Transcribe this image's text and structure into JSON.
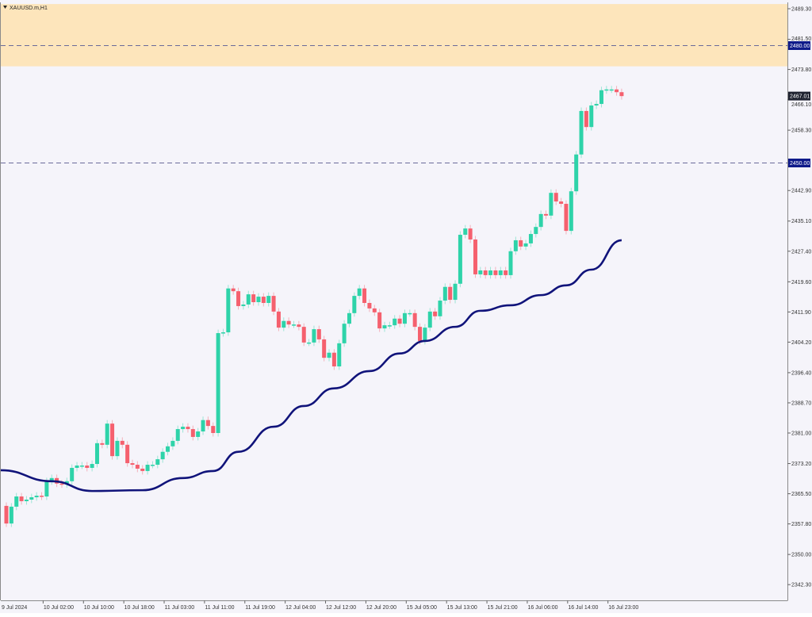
{
  "symbol_label": "XAUUSD.m,H1",
  "colors": {
    "background": "#f5f4fa",
    "zone": "#fde5bb",
    "bull": "#2ed3a9",
    "bear": "#f5606e",
    "ma": "#10137a",
    "level_line": "#6a6a9a",
    "level_tag": "#0f1a8a",
    "price_tag": "#1f2230"
  },
  "chart_data": {
    "type": "candlestick",
    "title": "XAUUSD.m,H1",
    "ylim": [
      2338.5,
      2491.0
    ],
    "y_ticks": [
      "2489.30",
      "2481.50",
      "2473.80",
      "2466.10",
      "2458.30",
      "2442.90",
      "2435.10",
      "2427.40",
      "2419.60",
      "2411.90",
      "2404.20",
      "2396.40",
      "2388.70",
      "2381.00",
      "2373.20",
      "2365.50",
      "2357.80",
      "2350.00",
      "2342.30"
    ],
    "x_ticks": [
      {
        "bar": 0,
        "label": "9 Jul 2024"
      },
      {
        "bar": 8,
        "label": "10 Jul 02:00"
      },
      {
        "bar": 16,
        "label": "10 Jul 10:00"
      },
      {
        "bar": 24,
        "label": "10 Jul 18:00"
      },
      {
        "bar": 32,
        "label": "11 Jul 03:00"
      },
      {
        "bar": 40,
        "label": "11 Jul 11:00"
      },
      {
        "bar": 48,
        "label": "11 Jul 19:00"
      },
      {
        "bar": 56,
        "label": "12 Jul 04:00"
      },
      {
        "bar": 64,
        "label": "12 Jul 12:00"
      },
      {
        "bar": 72,
        "label": "12 Jul 20:00"
      },
      {
        "bar": 80,
        "label": "15 Jul 05:00"
      },
      {
        "bar": 88,
        "label": "15 Jul 13:00"
      },
      {
        "bar": 96,
        "label": "15 Jul 21:00"
      },
      {
        "bar": 104,
        "label": "16 Jul 06:00"
      },
      {
        "bar": 112,
        "label": "16 Jul 14:00"
      },
      {
        "bar": 120,
        "label": "16 Jul 23:00"
      }
    ],
    "first_open": 2362.4,
    "wick_padding": 0.9,
    "closes": [
      2357.9,
      2362.2,
      2364.8,
      2363.6,
      2364.0,
      2364.6,
      2365.0,
      2364.8,
      2368.7,
      2369.5,
      2368.1,
      2367.9,
      2368.7,
      2372.1,
      2372.7,
      2372.7,
      2372.1,
      2373.1,
      2378.4,
      2378.0,
      2383.4,
      2375.1,
      2379.0,
      2378.0,
      2373.3,
      2372.9,
      2371.9,
      2371.3,
      2372.9,
      2372.9,
      2374.3,
      2376.2,
      2377.6,
      2379.0,
      2382.0,
      2382.6,
      2382.0,
      2380.0,
      2381.4,
      2384.3,
      2382.8,
      2381.0,
      2406.5,
      2406.7,
      2417.9,
      2417.2,
      2413.4,
      2413.8,
      2416.4,
      2414.4,
      2415.8,
      2414.2,
      2416.0,
      2412.0,
      2407.9,
      2409.6,
      2408.7,
      2408.7,
      2408.1,
      2404.1,
      2404.1,
      2407.5,
      2404.9,
      2400.2,
      2401.5,
      2398.0,
      2403.9,
      2408.9,
      2411.6,
      2416.0,
      2417.9,
      2414.2,
      2412.8,
      2411.8,
      2407.7,
      2408.5,
      2408.5,
      2410.2,
      2408.9,
      2411.6,
      2411.6,
      2408.1,
      2404.5,
      2407.9,
      2412.0,
      2410.8,
      2414.8,
      2418.3,
      2415.0,
      2419.1,
      2431.6,
      2433.2,
      2430.4,
      2421.5,
      2422.5,
      2421.3,
      2422.5,
      2421.3,
      2422.5,
      2421.3,
      2427.4,
      2430.2,
      2428.6,
      2429.4,
      2431.8,
      2433.6,
      2436.9,
      2436.5,
      2442.3,
      2440.1,
      2439.5,
      2432.6,
      2442.7,
      2452.1,
      2463.2,
      2459.1,
      2464.6,
      2465.0,
      2468.5,
      2468.7,
      2468.7,
      2468.0,
      2467.0
    ],
    "moving_average": [
      [
        0,
        2371.5
      ],
      [
        9,
        2368.7
      ],
      [
        17,
        2366.2
      ],
      [
        27,
        2366.4
      ],
      [
        35,
        2369.5
      ],
      [
        41,
        2371.3
      ],
      [
        46,
        2376.2
      ],
      [
        53,
        2382.6
      ],
      [
        59,
        2387.9
      ],
      [
        65,
        2392.4
      ],
      [
        72,
        2396.8
      ],
      [
        78,
        2401.3
      ],
      [
        83,
        2404.5
      ],
      [
        89,
        2408.1
      ],
      [
        94,
        2412.2
      ],
      [
        100,
        2413.6
      ],
      [
        106,
        2416.2
      ],
      [
        111,
        2418.7
      ],
      [
        116,
        2422.7
      ],
      [
        122,
        2430.2
      ]
    ],
    "zone": [
      2474.6,
      2490.5
    ],
    "levels": [
      {
        "price": 2480.0,
        "label": "2480.00"
      },
      {
        "price": 2450.0,
        "label": "2450.00"
      }
    ],
    "current_price": {
      "price": 2467.01,
      "label": "2467.01"
    }
  }
}
